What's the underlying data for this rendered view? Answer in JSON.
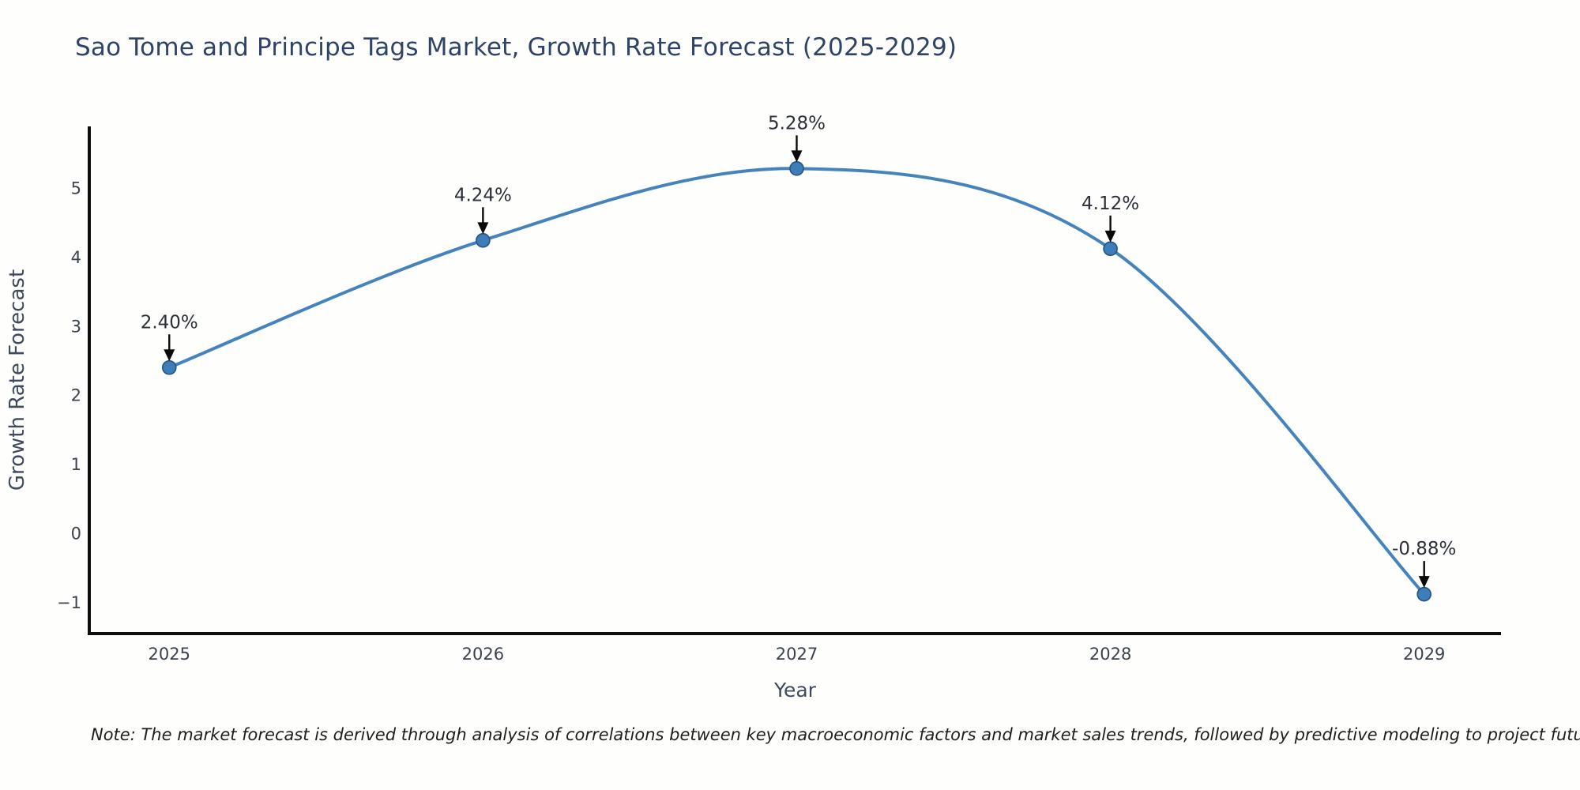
{
  "title": "Sao Tome and Principe Tags Market, Growth Rate Forecast (2025-2029)",
  "note": "Note: The market forecast is derived through analysis of correlations between key macroeconomic factors and market sales trends, followed by predictive modeling to project future sales",
  "chart_data": {
    "type": "line",
    "title": "Sao Tome and Principe Tags Market, Growth Rate Forecast (2025-2029)",
    "xlabel": "Year",
    "ylabel": "Growth Rate Forecast",
    "x": [
      2025,
      2026,
      2027,
      2028,
      2029
    ],
    "values": [
      2.4,
      4.24,
      5.28,
      4.12,
      -0.88
    ],
    "point_labels": [
      "2.40%",
      "4.24%",
      "5.28%",
      "4.12%",
      "-0.88%"
    ],
    "xtick_labels": [
      "2025",
      "2026",
      "2027",
      "2028",
      "2029"
    ],
    "ytick_values": [
      -1,
      0,
      1,
      2,
      3,
      4,
      5
    ],
    "ytick_labels": [
      "−1",
      "0",
      "1",
      "2",
      "3",
      "4",
      "5"
    ],
    "xlim": [
      2024.745,
      2029.245
    ],
    "ylim": [
      -1.45,
      5.89
    ],
    "grid": false,
    "legend": "none",
    "line_smoothing": "spline",
    "colors": {
      "line": "#4583bd",
      "marker_fill": "#3d7db8",
      "marker_edge": "#27547e",
      "axis_line": "#0e0e0e",
      "tick_text": "#3b4350",
      "axis_label_text": "#3e4a5e",
      "title_text": "#2e4366",
      "annotation_text": "#2a2f38",
      "arrow": "#0a0a0a",
      "background": "#fefefd"
    }
  }
}
